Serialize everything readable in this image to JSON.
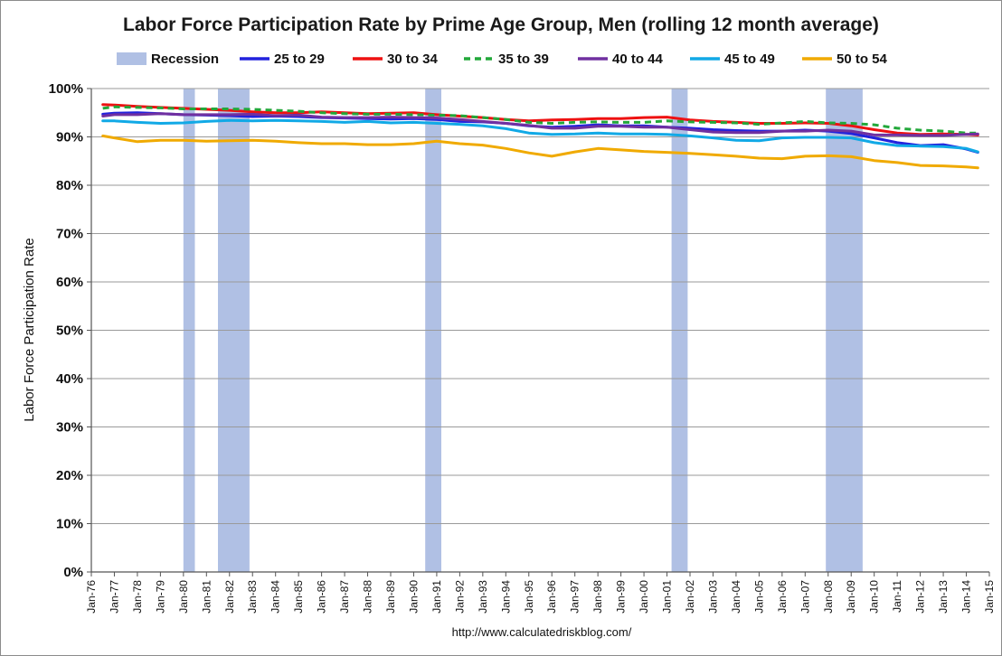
{
  "chart_data": {
    "type": "line",
    "title": "Labor Force Participation Rate by Prime Age Group, Men (rolling 12 month average)",
    "xlabel": "",
    "ylabel": "Labor Force Participation Rate",
    "source_text": "http://www.calculatedriskblog.com/",
    "x_range": [
      1976.0,
      2015.0
    ],
    "ylim": [
      0,
      100
    ],
    "y_ticks": [
      0,
      10,
      20,
      30,
      40,
      50,
      60,
      70,
      80,
      90,
      100
    ],
    "y_tick_labels": [
      "0%",
      "10%",
      "20%",
      "30%",
      "40%",
      "50%",
      "60%",
      "70%",
      "80%",
      "90%",
      "100%"
    ],
    "x_tick_labels": [
      "Jan-76",
      "Jan-77",
      "Jan-78",
      "Jan-79",
      "Jan-80",
      "Jan-81",
      "Jan-82",
      "Jan-83",
      "Jan-84",
      "Jan-85",
      "Jan-86",
      "Jan-87",
      "Jan-88",
      "Jan-89",
      "Jan-90",
      "Jan-91",
      "Jan-92",
      "Jan-93",
      "Jan-94",
      "Jan-95",
      "Jan-96",
      "Jan-97",
      "Jan-98",
      "Jan-99",
      "Jan-00",
      "Jan-01",
      "Jan-02",
      "Jan-03",
      "Jan-04",
      "Jan-05",
      "Jan-06",
      "Jan-07",
      "Jan-08",
      "Jan-09",
      "Jan-10",
      "Jan-11",
      "Jan-12",
      "Jan-13",
      "Jan-14",
      "Jan-15"
    ],
    "grid": "horizontal",
    "legend_position": "top",
    "recession_label": "Recession",
    "recession_color": "#b0c0e4",
    "recessions": [
      [
        1980.0,
        1980.5
      ],
      [
        1981.5,
        1982.87
      ],
      [
        1990.5,
        1991.2
      ],
      [
        2001.2,
        2001.9
      ],
      [
        2007.9,
        2009.5
      ]
    ],
    "x": [
      1976.5,
      1977.0,
      1978.0,
      1979.0,
      1980.0,
      1981.0,
      1982.0,
      1983.0,
      1984.0,
      1985.0,
      1986.0,
      1987.0,
      1988.0,
      1989.0,
      1990.0,
      1991.0,
      1992.0,
      1993.0,
      1994.0,
      1995.0,
      1996.0,
      1997.0,
      1998.0,
      1999.0,
      2000.0,
      2001.0,
      2002.0,
      2003.0,
      2004.0,
      2005.0,
      2006.0,
      2007.0,
      2008.0,
      2009.0,
      2010.0,
      2011.0,
      2012.0,
      2013.0,
      2014.0,
      2014.5
    ],
    "series": [
      {
        "name": "25 to 29",
        "color": "#2222dd",
        "dash": false,
        "values": [
          94.7,
          94.9,
          95.0,
          94.8,
          94.6,
          94.5,
          94.4,
          94.2,
          94.3,
          94.2,
          94.0,
          93.9,
          93.8,
          93.7,
          93.8,
          93.6,
          93.2,
          93.1,
          92.8,
          92.3,
          92.0,
          92.2,
          92.5,
          92.3,
          92.3,
          92.0,
          91.8,
          91.5,
          91.3,
          91.2,
          91.2,
          91.4,
          91.2,
          90.7,
          89.8,
          88.8,
          88.2,
          88.4,
          87.5,
          86.8
        ]
      },
      {
        "name": "30 to 34",
        "color": "#ee1111",
        "dash": false,
        "values": [
          96.7,
          96.6,
          96.3,
          96.1,
          95.9,
          95.7,
          95.5,
          95.2,
          95.0,
          95.0,
          95.2,
          95.0,
          94.8,
          94.9,
          95.0,
          94.6,
          94.3,
          94.0,
          93.6,
          93.3,
          93.5,
          93.6,
          93.8,
          93.8,
          94.0,
          94.1,
          93.5,
          93.2,
          93.0,
          92.8,
          92.8,
          92.9,
          92.8,
          92.3,
          91.5,
          90.8,
          90.5,
          90.6,
          90.5,
          90.4
        ]
      },
      {
        "name": "35 to 39",
        "color": "#22a83a",
        "dash": true,
        "values": [
          95.9,
          96.2,
          96.1,
          96.0,
          95.8,
          95.8,
          95.8,
          95.7,
          95.5,
          95.3,
          95.0,
          94.8,
          94.7,
          94.7,
          94.6,
          94.5,
          94.4,
          94.0,
          93.6,
          93.0,
          92.8,
          93.0,
          93.1,
          93.0,
          93.0,
          93.3,
          93.1,
          93.0,
          92.9,
          92.6,
          92.9,
          93.2,
          92.9,
          92.8,
          92.5,
          91.8,
          91.4,
          91.2,
          90.8,
          90.8
        ]
      },
      {
        "name": "40 to 44",
        "color": "#7030a0",
        "dash": false,
        "values": [
          94.3,
          94.6,
          94.6,
          94.8,
          94.6,
          94.6,
          94.6,
          94.7,
          94.4,
          94.5,
          94.1,
          94.0,
          94.0,
          94.1,
          94.0,
          93.9,
          93.6,
          93.2,
          92.8,
          92.4,
          91.8,
          91.8,
          92.2,
          92.2,
          92.0,
          92.0,
          91.5,
          91.0,
          90.9,
          90.9,
          91.2,
          91.2,
          91.4,
          91.2,
          90.4,
          90.4,
          90.3,
          90.3,
          90.5,
          90.6
        ]
      },
      {
        "name": "45 to 49",
        "color": "#11a9e6",
        "dash": false,
        "values": [
          93.3,
          93.3,
          93.0,
          92.8,
          92.9,
          93.2,
          93.4,
          93.3,
          93.4,
          93.3,
          93.2,
          93.0,
          93.2,
          92.9,
          93.0,
          92.8,
          92.6,
          92.3,
          91.7,
          90.8,
          90.5,
          90.6,
          90.8,
          90.6,
          90.6,
          90.5,
          90.2,
          89.8,
          89.3,
          89.2,
          89.8,
          89.9,
          89.9,
          89.8,
          88.8,
          88.2,
          88.1,
          88.0,
          87.6,
          86.9
        ]
      },
      {
        "name": "50 to 54",
        "color": "#f0aa00",
        "dash": false,
        "values": [
          90.2,
          89.8,
          89.0,
          89.3,
          89.3,
          89.1,
          89.2,
          89.3,
          89.1,
          88.8,
          88.6,
          88.6,
          88.4,
          88.4,
          88.6,
          89.1,
          88.6,
          88.3,
          87.6,
          86.7,
          86.0,
          86.9,
          87.6,
          87.3,
          87.0,
          86.8,
          86.6,
          86.3,
          86.0,
          85.6,
          85.5,
          86.0,
          86.1,
          85.9,
          85.1,
          84.7,
          84.1,
          84.0,
          83.8,
          83.6
        ]
      }
    ]
  }
}
